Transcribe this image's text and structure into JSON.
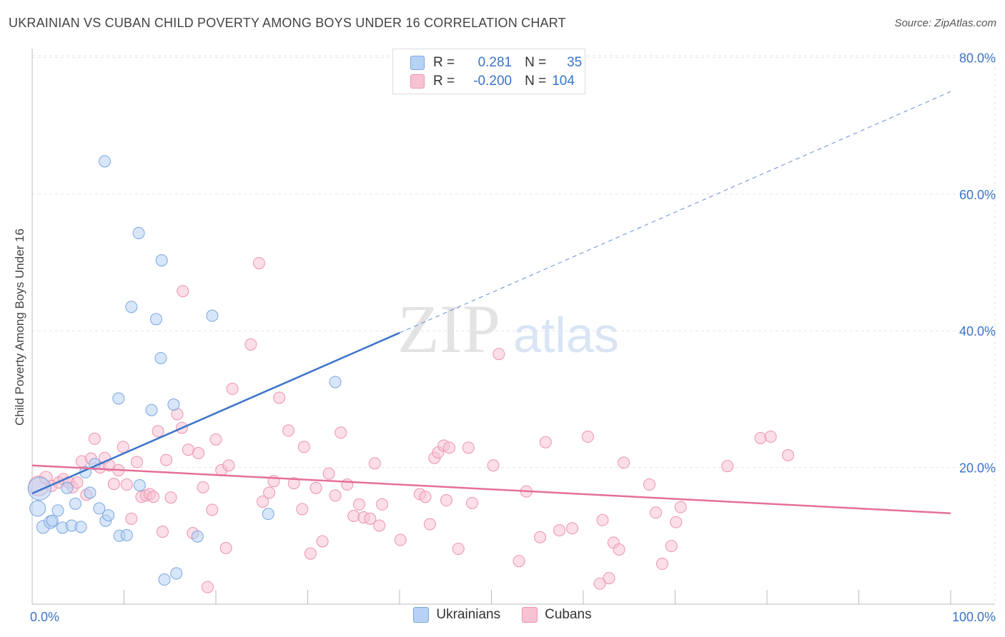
{
  "header": {
    "title": "UKRAINIAN VS CUBAN CHILD POVERTY AMONG BOYS UNDER 16 CORRELATION CHART",
    "source": "Source: ZipAtlas.com"
  },
  "watermark": {
    "zip": "ZIP",
    "atlas": "atlas"
  },
  "legend_stats": [
    {
      "r_label": "R =",
      "r_value": "0.281",
      "n_label": "N =",
      "n_value": "35",
      "color": "#a9c8f0"
    },
    {
      "r_label": "R =",
      "r_value": "-0.200",
      "n_label": "N =",
      "n_value": "104",
      "color": "#f6b8cc"
    }
  ],
  "colors": {
    "ukrainians_fill": "#b7d2f4",
    "ukrainians_stroke": "#7aa6df",
    "ukrainians_line": "#3a74c9",
    "cubans_fill": "#f7c3d3",
    "cubans_stroke": "#ec93b0",
    "cubans_line": "#e56f9a",
    "axis_tick_label": "#3a74c9"
  },
  "chart_data": {
    "type": "scatter",
    "title": "UKRAINIAN VS CUBAN CHILD POVERTY AMONG BOYS UNDER 16 CORRELATION CHART",
    "xlabel": "",
    "ylabel": "Child Poverty Among Boys Under 16",
    "xlim": [
      0,
      100
    ],
    "ylim": [
      0,
      80
    ],
    "x_tick_labels": [
      "0.0%",
      "100.0%"
    ],
    "y_ticks": [
      20,
      40,
      60,
      80
    ],
    "y_tick_labels": [
      "20.0%",
      "40.0%",
      "60.0%",
      "80.0%"
    ],
    "grid": true,
    "legend_position": "bottom-center",
    "series": [
      {
        "name": "Ukrainians",
        "r": 0.281,
        "n": 35,
        "trend": {
          "x": [
            0,
            40
          ],
          "y": [
            16.2,
            39.7
          ],
          "extended_x": [
            40,
            100
          ],
          "extended_y": [
            39.7,
            75.0
          ]
        },
        "points": [
          {
            "x": 0.8,
            "y": 16.9,
            "s": 16
          },
          {
            "x": 0.6,
            "y": 14.0,
            "s": 11
          },
          {
            "x": 1.2,
            "y": 11.3,
            "s": 9
          },
          {
            "x": 2.0,
            "y": 12.0,
            "s": 9
          },
          {
            "x": 2.8,
            "y": 13.7,
            "s": 8
          },
          {
            "x": 3.3,
            "y": 11.2,
            "s": 8
          },
          {
            "x": 3.8,
            "y": 17.0,
            "s": 8
          },
          {
            "x": 4.3,
            "y": 11.5,
            "s": 8
          },
          {
            "x": 4.7,
            "y": 14.7,
            "s": 8
          },
          {
            "x": 5.3,
            "y": 11.3,
            "s": 8
          },
          {
            "x": 5.8,
            "y": 19.3,
            "s": 8
          },
          {
            "x": 6.3,
            "y": 16.3,
            "s": 8
          },
          {
            "x": 6.8,
            "y": 20.5,
            "s": 8
          },
          {
            "x": 7.3,
            "y": 14.0,
            "s": 8
          },
          {
            "x": 8.0,
            "y": 12.2,
            "s": 8
          },
          {
            "x": 8.3,
            "y": 13.0,
            "s": 8
          },
          {
            "x": 9.5,
            "y": 10.0,
            "s": 8
          },
          {
            "x": 10.3,
            "y": 10.1,
            "s": 8
          },
          {
            "x": 11.7,
            "y": 17.4,
            "s": 8
          },
          {
            "x": 15.7,
            "y": 4.5,
            "s": 8
          },
          {
            "x": 14.4,
            "y": 3.6,
            "s": 8
          },
          {
            "x": 18.0,
            "y": 9.9,
            "s": 8
          },
          {
            "x": 25.7,
            "y": 13.2,
            "s": 8
          },
          {
            "x": 7.9,
            "y": 64.8,
            "s": 8
          },
          {
            "x": 11.6,
            "y": 54.3,
            "s": 8
          },
          {
            "x": 14.1,
            "y": 50.3,
            "s": 8
          },
          {
            "x": 10.8,
            "y": 43.5,
            "s": 8
          },
          {
            "x": 13.5,
            "y": 41.7,
            "s": 8
          },
          {
            "x": 19.6,
            "y": 42.2,
            "s": 8
          },
          {
            "x": 14.0,
            "y": 36.0,
            "s": 8
          },
          {
            "x": 9.4,
            "y": 30.1,
            "s": 8
          },
          {
            "x": 13.0,
            "y": 28.4,
            "s": 8
          },
          {
            "x": 15.4,
            "y": 29.2,
            "s": 8
          },
          {
            "x": 33.0,
            "y": 32.5,
            "s": 8
          },
          {
            "x": 2.2,
            "y": 12.2,
            "s": 8
          }
        ]
      },
      {
        "name": "Cubans",
        "r": -0.2,
        "n": 104,
        "trend": {
          "x": [
            0,
            100
          ],
          "y": [
            20.3,
            13.3
          ]
        },
        "points": [
          {
            "x": 0.7,
            "y": 17.3,
            "s": 14
          },
          {
            "x": 1.5,
            "y": 18.5,
            "s": 9
          },
          {
            "x": 2.1,
            "y": 17.3,
            "s": 8
          },
          {
            "x": 2.9,
            "y": 17.8,
            "s": 8
          },
          {
            "x": 3.4,
            "y": 18.3,
            "s": 8
          },
          {
            "x": 4.0,
            "y": 17.8,
            "s": 8
          },
          {
            "x": 4.4,
            "y": 17.1,
            "s": 8
          },
          {
            "x": 4.9,
            "y": 17.8,
            "s": 8
          },
          {
            "x": 5.4,
            "y": 20.9,
            "s": 8
          },
          {
            "x": 5.9,
            "y": 16.0,
            "s": 8
          },
          {
            "x": 6.4,
            "y": 21.3,
            "s": 8
          },
          {
            "x": 6.8,
            "y": 24.2,
            "s": 8
          },
          {
            "x": 7.4,
            "y": 20.0,
            "s": 8
          },
          {
            "x": 7.9,
            "y": 21.4,
            "s": 8
          },
          {
            "x": 8.4,
            "y": 20.3,
            "s": 8
          },
          {
            "x": 8.9,
            "y": 17.6,
            "s": 8
          },
          {
            "x": 9.4,
            "y": 19.6,
            "s": 8
          },
          {
            "x": 9.9,
            "y": 23.0,
            "s": 8
          },
          {
            "x": 10.3,
            "y": 17.5,
            "s": 8
          },
          {
            "x": 10.8,
            "y": 12.5,
            "s": 8
          },
          {
            "x": 11.4,
            "y": 20.8,
            "s": 8
          },
          {
            "x": 11.9,
            "y": 15.7,
            "s": 8
          },
          {
            "x": 12.4,
            "y": 15.9,
            "s": 8
          },
          {
            "x": 12.8,
            "y": 16.1,
            "s": 8
          },
          {
            "x": 13.2,
            "y": 15.7,
            "s": 8
          },
          {
            "x": 13.7,
            "y": 25.3,
            "s": 8
          },
          {
            "x": 14.2,
            "y": 10.6,
            "s": 8
          },
          {
            "x": 14.6,
            "y": 21.1,
            "s": 8
          },
          {
            "x": 15.1,
            "y": 15.6,
            "s": 8
          },
          {
            "x": 15.8,
            "y": 27.8,
            "s": 8
          },
          {
            "x": 16.3,
            "y": 25.8,
            "s": 8
          },
          {
            "x": 17.0,
            "y": 22.6,
            "s": 8
          },
          {
            "x": 17.5,
            "y": 10.4,
            "s": 8
          },
          {
            "x": 18.1,
            "y": 22.1,
            "s": 8
          },
          {
            "x": 18.6,
            "y": 17.1,
            "s": 8
          },
          {
            "x": 19.6,
            "y": 13.8,
            "s": 8
          },
          {
            "x": 20.0,
            "y": 24.1,
            "s": 8
          },
          {
            "x": 20.6,
            "y": 19.6,
            "s": 8
          },
          {
            "x": 21.1,
            "y": 8.2,
            "s": 8
          },
          {
            "x": 21.8,
            "y": 31.5,
            "s": 8
          },
          {
            "x": 19.1,
            "y": 2.5,
            "s": 8
          },
          {
            "x": 21.4,
            "y": 20.3,
            "s": 8
          },
          {
            "x": 23.8,
            "y": 38.0,
            "s": 8
          },
          {
            "x": 24.7,
            "y": 49.9,
            "s": 8
          },
          {
            "x": 16.4,
            "y": 45.8,
            "s": 8
          },
          {
            "x": 25.1,
            "y": 15.0,
            "s": 8
          },
          {
            "x": 25.8,
            "y": 16.3,
            "s": 8
          },
          {
            "x": 26.3,
            "y": 18.0,
            "s": 8
          },
          {
            "x": 26.9,
            "y": 30.2,
            "s": 8
          },
          {
            "x": 27.9,
            "y": 25.4,
            "s": 8
          },
          {
            "x": 28.5,
            "y": 17.7,
            "s": 8
          },
          {
            "x": 29.4,
            "y": 13.9,
            "s": 8
          },
          {
            "x": 29.6,
            "y": 23.0,
            "s": 8
          },
          {
            "x": 30.3,
            "y": 7.4,
            "s": 8
          },
          {
            "x": 30.9,
            "y": 17.0,
            "s": 8
          },
          {
            "x": 31.6,
            "y": 9.2,
            "s": 8
          },
          {
            "x": 32.3,
            "y": 19.1,
            "s": 8
          },
          {
            "x": 33.0,
            "y": 15.9,
            "s": 8
          },
          {
            "x": 33.6,
            "y": 25.1,
            "s": 8
          },
          {
            "x": 34.3,
            "y": 17.5,
            "s": 8
          },
          {
            "x": 35.0,
            "y": 12.9,
            "s": 8
          },
          {
            "x": 35.6,
            "y": 14.6,
            "s": 8
          },
          {
            "x": 36.1,
            "y": 12.7,
            "s": 8
          },
          {
            "x": 36.8,
            "y": 12.5,
            "s": 8
          },
          {
            "x": 37.3,
            "y": 20.6,
            "s": 8
          },
          {
            "x": 37.8,
            "y": 11.5,
            "s": 8
          },
          {
            "x": 38.1,
            "y": 14.6,
            "s": 8
          },
          {
            "x": 40.1,
            "y": 9.4,
            "s": 8
          },
          {
            "x": 42.2,
            "y": 16.1,
            "s": 8
          },
          {
            "x": 42.8,
            "y": 15.7,
            "s": 8
          },
          {
            "x": 43.3,
            "y": 11.7,
            "s": 8
          },
          {
            "x": 43.8,
            "y": 21.4,
            "s": 8
          },
          {
            "x": 44.2,
            "y": 22.2,
            "s": 8
          },
          {
            "x": 44.8,
            "y": 23.2,
            "s": 8
          },
          {
            "x": 45.4,
            "y": 22.9,
            "s": 8
          },
          {
            "x": 46.4,
            "y": 8.1,
            "s": 8
          },
          {
            "x": 47.5,
            "y": 22.9,
            "s": 8
          },
          {
            "x": 47.9,
            "y": 14.8,
            "s": 8
          },
          {
            "x": 45.1,
            "y": 15.2,
            "s": 8
          },
          {
            "x": 50.2,
            "y": 20.3,
            "s": 8
          },
          {
            "x": 50.8,
            "y": 36.6,
            "s": 8
          },
          {
            "x": 53.0,
            "y": 6.3,
            "s": 8
          },
          {
            "x": 53.8,
            "y": 16.5,
            "s": 8
          },
          {
            "x": 55.3,
            "y": 9.8,
            "s": 8
          },
          {
            "x": 55.9,
            "y": 23.7,
            "s": 8
          },
          {
            "x": 57.4,
            "y": 10.8,
            "s": 8
          },
          {
            "x": 58.8,
            "y": 11.1,
            "s": 8
          },
          {
            "x": 60.5,
            "y": 24.5,
            "s": 8
          },
          {
            "x": 62.1,
            "y": 12.3,
            "s": 8
          },
          {
            "x": 63.3,
            "y": 9.0,
            "s": 8
          },
          {
            "x": 63.9,
            "y": 8.0,
            "s": 8
          },
          {
            "x": 64.4,
            "y": 20.7,
            "s": 8
          },
          {
            "x": 62.8,
            "y": 3.8,
            "s": 8
          },
          {
            "x": 61.8,
            "y": 3.0,
            "s": 8
          },
          {
            "x": 67.2,
            "y": 17.5,
            "s": 8
          },
          {
            "x": 67.9,
            "y": 13.4,
            "s": 8
          },
          {
            "x": 68.6,
            "y": 5.9,
            "s": 8
          },
          {
            "x": 69.6,
            "y": 8.5,
            "s": 8
          },
          {
            "x": 70.1,
            "y": 12.0,
            "s": 8
          },
          {
            "x": 70.6,
            "y": 14.2,
            "s": 8
          },
          {
            "x": 75.7,
            "y": 20.2,
            "s": 8
          },
          {
            "x": 79.3,
            "y": 24.3,
            "s": 8
          },
          {
            "x": 80.4,
            "y": 24.5,
            "s": 8
          },
          {
            "x": 82.3,
            "y": 21.8,
            "s": 8
          }
        ]
      }
    ]
  },
  "bottom_legend": [
    {
      "label": "Ukrainians",
      "color": "#b7d2f4",
      "border": "#7aa6df"
    },
    {
      "label": "Cubans",
      "color": "#f7c3d3",
      "border": "#ec93b0"
    }
  ]
}
